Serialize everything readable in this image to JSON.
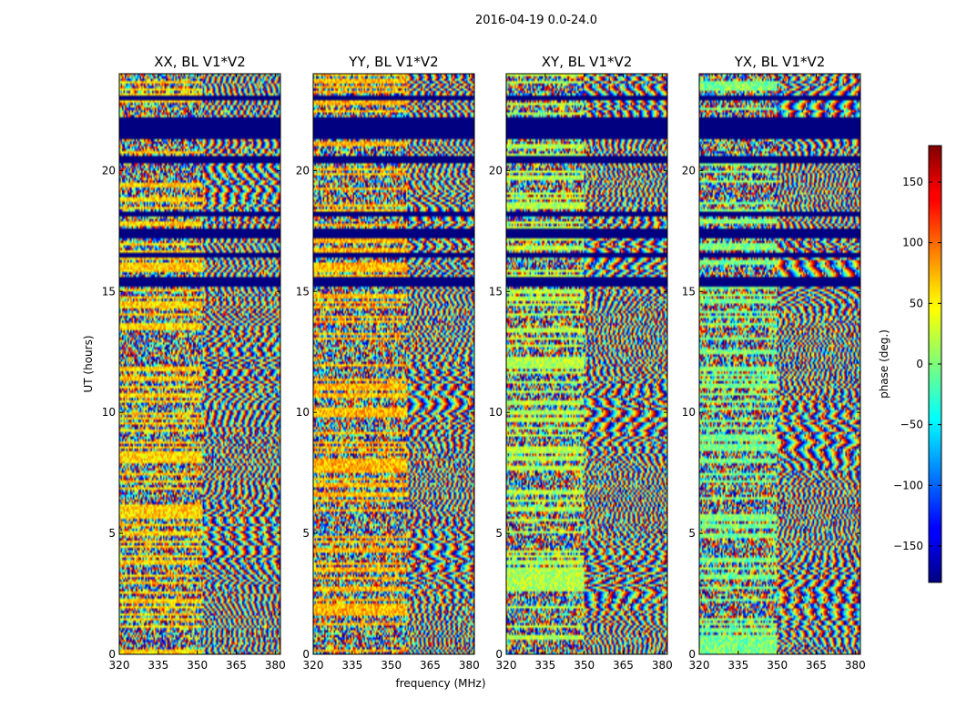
{
  "figure": {
    "suptitle": "2016-04-19 0.0-24.0",
    "xlabel": "frequency (MHz)",
    "ylabel": "UT (hours)"
  },
  "chart_data": {
    "type": "heatmap",
    "colormap": "jet",
    "x_range": [
      320,
      382
    ],
    "y_range": [
      0,
      24
    ],
    "x_ticks": [
      320,
      335,
      350,
      365,
      380
    ],
    "y_ticks": [
      0,
      5,
      10,
      15,
      20
    ],
    "panels": [
      {
        "title": "XX, BL V1*V2",
        "low_freq_phase": 60,
        "fringe_start": 352
      },
      {
        "title": "YY, BL V1*V2",
        "low_freq_phase": 70,
        "fringe_start": 356
      },
      {
        "title": "XY, BL V1*V2",
        "low_freq_phase": 20,
        "fringe_start": 350
      },
      {
        "title": "YX, BL V1*V2",
        "low_freq_phase": 0,
        "fringe_start": 350
      }
    ],
    "flagged_ut_hours": [
      [
        21.3,
        22.2
      ],
      [
        20.3,
        20.6
      ],
      [
        18.1,
        18.3
      ],
      [
        17.2,
        17.6
      ],
      [
        16.4,
        16.6
      ],
      [
        15.2,
        15.6
      ],
      [
        22.9,
        23.1
      ]
    ],
    "colorbar": {
      "label": "phase (deg.)",
      "range": [
        -180,
        180
      ],
      "ticks": [
        -150,
        -100,
        -50,
        0,
        50,
        100,
        150
      ]
    }
  }
}
